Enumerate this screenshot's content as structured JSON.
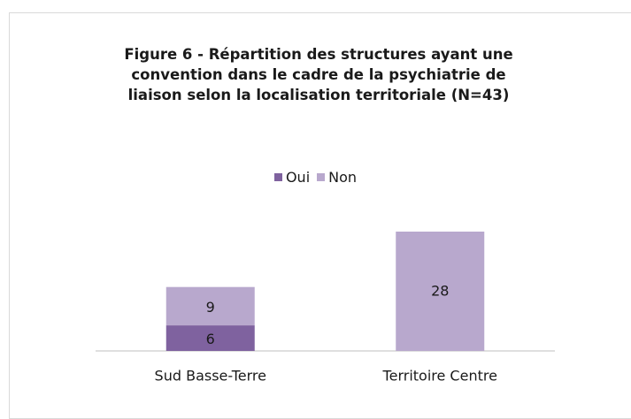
{
  "chart_data": {
    "type": "stacked_bar",
    "title": "Figure 6 - Répartition des structures ayant une convention dans le cadre de la psychiatrie de liaison selon la localisation territoriale (N=43)",
    "categories": [
      "Sud Basse-Terre",
      "Territoire Centre"
    ],
    "series": [
      {
        "name": "Oui",
        "color": "#7f629f",
        "values": [
          6,
          0
        ]
      },
      {
        "name": "Non",
        "color": "#b8a8cd",
        "values": [
          9,
          28
        ]
      }
    ],
    "legend": "top"
  }
}
